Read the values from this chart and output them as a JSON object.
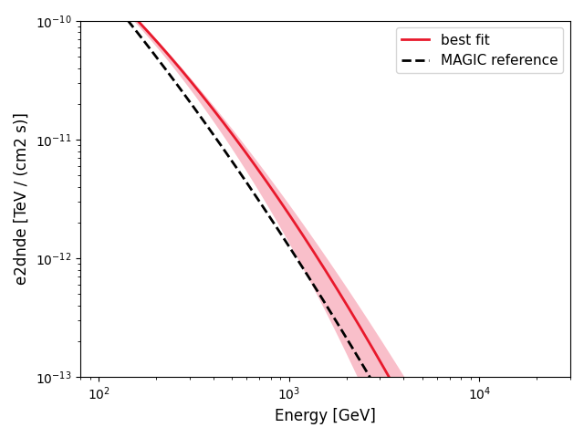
{
  "title": "",
  "xlabel": "Energy [GeV]",
  "ylabel": "e2dnde [TeV / (cm2 s)]",
  "xlim": [
    80,
    30000
  ],
  "ylim": [
    1e-13,
    1e-10
  ],
  "best_fit_color": "#e8192c",
  "band_color": "#f48096",
  "band_alpha": 0.5,
  "magic_color": "black",
  "magic_lw": 2.0,
  "best_fit_lw": 2.0,
  "legend_loc": "upper right",
  "energy_min": 80,
  "energy_max": 30000,
  "n_points": 500,
  "lp_amplitude": 6.8e-11,
  "lp_reference": 200.0,
  "lp_alpha": 1.8,
  "lp_beta": 0.42,
  "magic_amplitude": 5e-11,
  "magic_reference": 200.0,
  "magic_alpha": 2.1,
  "magic_beta": 0.27,
  "band_sigma_low": 0.03,
  "band_sigma_high": 1.8
}
